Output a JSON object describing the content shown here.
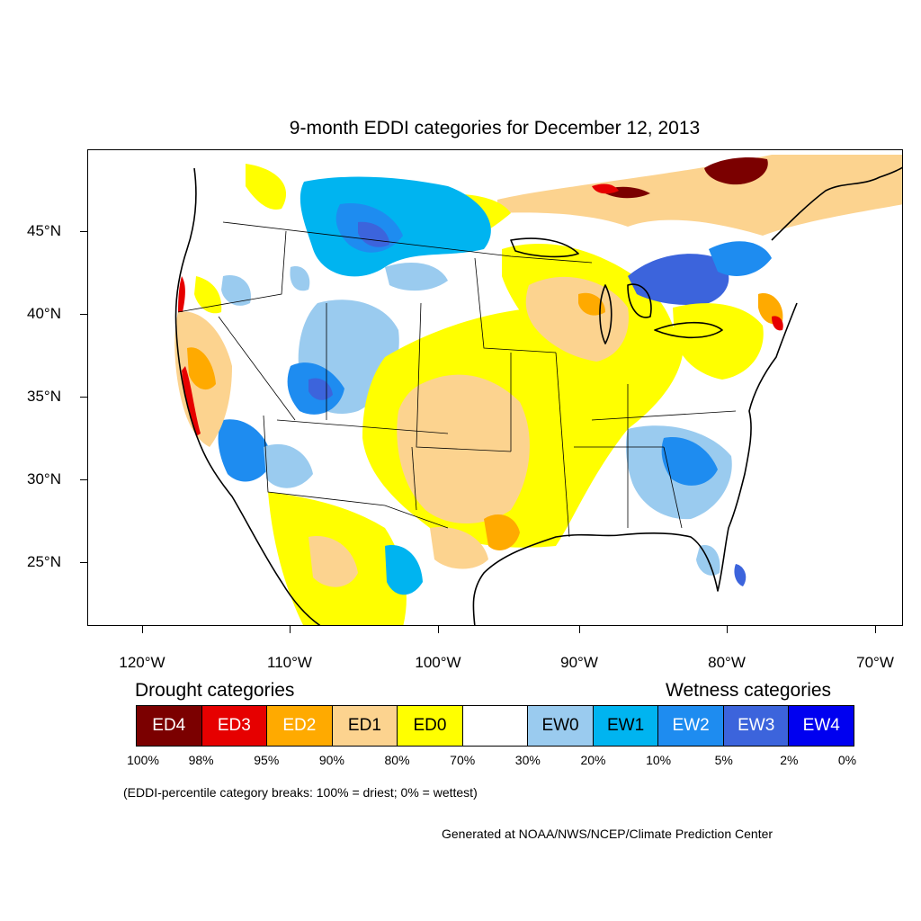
{
  "title": "9-month EDDI categories for December 12, 2013",
  "y_axis": {
    "ticks": [
      "45°N",
      "40°N",
      "35°N",
      "30°N",
      "25°N"
    ]
  },
  "x_axis": {
    "ticks": [
      "120°W",
      "110°W",
      "100°W",
      "90°W",
      "80°W",
      "70°W"
    ]
  },
  "legend": {
    "drought_heading": "Drought categories",
    "wetness_heading": "Wetness categories",
    "categories": [
      {
        "label": "ED4",
        "color": "#7b0000",
        "text_color": "#ffffff"
      },
      {
        "label": "ED3",
        "color": "#e60000",
        "text_color": "#ffffff"
      },
      {
        "label": "ED2",
        "color": "#ffaa00",
        "text_color": "#ffffff"
      },
      {
        "label": "ED1",
        "color": "#fcd38f",
        "text_color": "#000000"
      },
      {
        "label": "ED0",
        "color": "#ffff00",
        "text_color": "#000000"
      },
      {
        "label": "",
        "color": "#ffffff",
        "text_color": "#000000"
      },
      {
        "label": "EW0",
        "color": "#9acbef",
        "text_color": "#000000"
      },
      {
        "label": "EW1",
        "color": "#00b4f0",
        "text_color": "#000000"
      },
      {
        "label": "EW2",
        "color": "#1e8cf0",
        "text_color": "#ffffff"
      },
      {
        "label": "EW3",
        "color": "#3c64dc",
        "text_color": "#ffffff"
      },
      {
        "label": "EW4",
        "color": "#0000f0",
        "text_color": "#ffffff"
      }
    ],
    "breaks": [
      "100%",
      "98%",
      "95%",
      "90%",
      "80%",
      "70%",
      "30%",
      "20%",
      "10%",
      "5%",
      "2%",
      "0%"
    ]
  },
  "note": "(EDDI-percentile category breaks: 100% = driest; 0% = wettest)",
  "credit": "Generated at NOAA/NWS/NCEP/Climate Prediction Center"
}
